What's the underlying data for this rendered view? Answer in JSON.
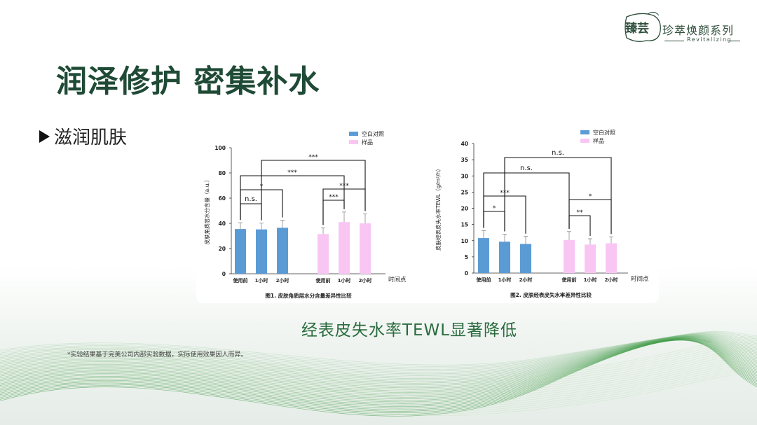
{
  "brand": {
    "seal_text": "臻芸",
    "series_name": "珍萃焕颜系列",
    "subtitle": "Revitalizing"
  },
  "title": "润泽修护 密集补水",
  "bullet": "滋润肌肤",
  "headline": "经表皮失水率TEWL显著降低",
  "footnote": "*实验结果基于完美公司内部实验数据，实际使用效果因人而异。",
  "colors": {
    "title": "#1f4a36",
    "blank": "#5b9bd5",
    "sample": "#f9c6f4",
    "headline": "#2a6b3e",
    "wave": "#3f9a46"
  },
  "chart_data": [
    {
      "type": "bar",
      "title": "图1. 皮肤角质层水分含量差异性比较",
      "ylabel": "皮肤角质层水分含量（a.u.）",
      "xlabel": "时间点",
      "ylim": [
        0,
        100
      ],
      "yticks": [
        0,
        20,
        40,
        60,
        80,
        100
      ],
      "categories": [
        "使用前",
        "1小时",
        "2小时"
      ],
      "series": [
        {
          "name": "空白对照",
          "values": [
            35.5,
            35.2,
            36.5
          ],
          "errors": [
            5,
            5,
            6
          ]
        },
        {
          "name": "样品",
          "values": [
            31.5,
            41,
            40
          ],
          "errors": [
            5,
            8,
            7.5
          ]
        }
      ],
      "significance": [
        {
          "group": 0,
          "from": 0,
          "to": 1,
          "label": "n.s."
        },
        {
          "group": 0,
          "from": 0,
          "to": 2,
          "label": "*"
        },
        {
          "group": 1,
          "from": 0,
          "to": 1,
          "label": "***"
        },
        {
          "group": 1,
          "from": 0,
          "to": 2,
          "label": "***"
        },
        {
          "group": "across",
          "from": 0,
          "to": 4,
          "label": "***"
        },
        {
          "group": "across",
          "from": 1,
          "to": 5,
          "label": "***"
        }
      ],
      "legend": "top-right"
    },
    {
      "type": "bar",
      "title": "图2. 皮肤经表皮失水率差异性比较",
      "ylabel": "皮肤经表皮失水率TEWL（g/m²/h）",
      "xlabel": "时间点",
      "ylim": [
        0,
        40
      ],
      "yticks": [
        0,
        5,
        10,
        15,
        20,
        25,
        30,
        35,
        40
      ],
      "categories": [
        "使用前",
        "1小时",
        "2小时"
      ],
      "series": [
        {
          "name": "空白对照",
          "values": [
            10.8,
            9.7,
            9
          ],
          "errors": [
            2.3,
            2.3,
            2.3
          ]
        },
        {
          "name": "样品",
          "values": [
            10.2,
            8.8,
            9.2
          ],
          "errors": [
            2.6,
            1.8,
            2
          ]
        }
      ],
      "significance": [
        {
          "group": 0,
          "from": 0,
          "to": 1,
          "label": "*"
        },
        {
          "group": 0,
          "from": 0,
          "to": 2,
          "label": "***"
        },
        {
          "group": 1,
          "from": 0,
          "to": 1,
          "label": "**"
        },
        {
          "group": 1,
          "from": 0,
          "to": 2,
          "label": "*"
        },
        {
          "group": "across",
          "from": 0,
          "to": 3,
          "label": "n.s."
        },
        {
          "group": "across",
          "from": 1,
          "to": 5,
          "label": "n.s."
        }
      ],
      "legend": "top-right"
    }
  ]
}
